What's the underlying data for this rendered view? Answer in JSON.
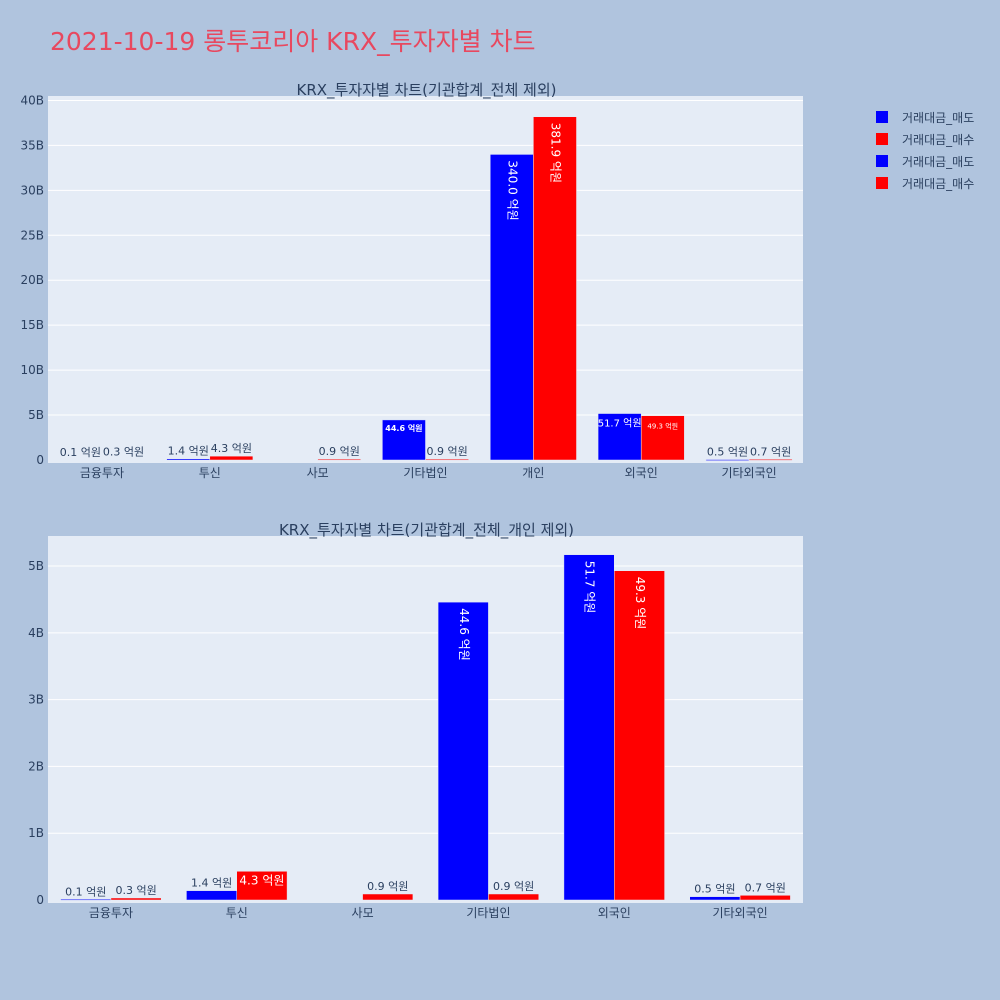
{
  "page": {
    "title": "2021-10-19 롱투코리아 KRX_투자자별 차트"
  },
  "legend": [
    {
      "label": "거래대금_매도",
      "color": "#0000ff"
    },
    {
      "label": "거래대금_매수",
      "color": "#ff0000"
    },
    {
      "label": "거래대금_매도",
      "color": "#0000ff"
    },
    {
      "label": "거래대금_매수",
      "color": "#ff0000"
    }
  ],
  "chart_data": [
    {
      "type": "bar",
      "title": "KRX_투자자별 차트(기관합계_전체 제외)",
      "categories": [
        "금융투자",
        "투신",
        "사모",
        "기타법인",
        "개인",
        "외국인",
        "기타외국인"
      ],
      "series": [
        {
          "name": "거래대금_매도",
          "color": "#0000ff",
          "values": [
            0.01,
            0.14,
            0,
            4.46,
            34.0,
            5.17,
            0.05
          ],
          "labels": [
            "0.1 억원",
            "1.4 억원",
            "",
            "44.6 억원",
            "340.0 억원",
            "51.7 억원",
            "0.5 억원"
          ]
        },
        {
          "name": "거래대금_매수",
          "color": "#ff0000",
          "values": [
            0.03,
            0.43,
            0.09,
            0.09,
            38.19,
            4.93,
            0.07
          ],
          "labels": [
            "0.3 억원",
            "4.3 억원",
            "0.9 억원",
            "0.9 억원",
            "381.9 억원",
            "49.3 억원",
            "0.7 억원"
          ]
        }
      ],
      "ylim": [
        0,
        40.5
      ],
      "yticks": [
        0,
        5,
        10,
        15,
        20,
        25,
        30,
        35,
        40
      ],
      "ytick_labels": [
        "0",
        "5B",
        "10B",
        "15B",
        "20B",
        "25B",
        "30B",
        "35B",
        "40B"
      ]
    },
    {
      "type": "bar",
      "title": "KRX_투자자별 차트(기관합계_전체_개인 제외)",
      "categories": [
        "금융투자",
        "투신",
        "사모",
        "기타법인",
        "외국인",
        "기타외국인"
      ],
      "series": [
        {
          "name": "거래대금_매도",
          "color": "#0000ff",
          "values": [
            0.01,
            0.14,
            0,
            4.46,
            5.17,
            0.05
          ],
          "labels": [
            "0.1 억원",
            "1.4 억원",
            "",
            "44.6 억원",
            "51.7 억원",
            "0.5 억원"
          ]
        },
        {
          "name": "거래대금_매수",
          "color": "#ff0000",
          "values": [
            0.03,
            0.43,
            0.09,
            0.09,
            4.93,
            0.07
          ],
          "labels": [
            "0.3 억원",
            "4.3 억원",
            "0.9 억원",
            "0.9 억원",
            "49.3 억원",
            "0.7 억원"
          ]
        }
      ],
      "ylim": [
        0,
        5.45
      ],
      "yticks": [
        0,
        1,
        2,
        3,
        4,
        5
      ],
      "ytick_labels": [
        "0",
        "1B",
        "2B",
        "3B",
        "4B",
        "5B"
      ]
    }
  ]
}
